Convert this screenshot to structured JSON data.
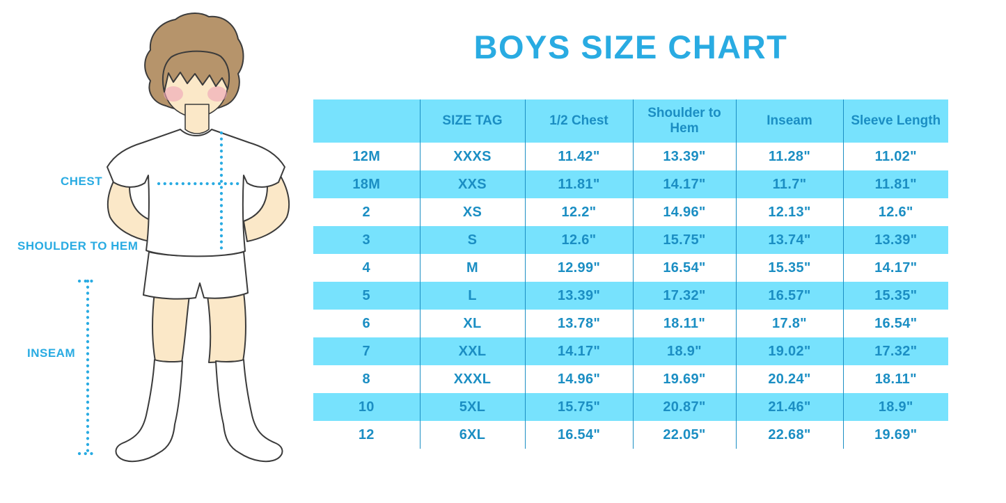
{
  "title": "BOYS SIZE CHART",
  "figure": {
    "labels": {
      "chest": "CHEST",
      "shoulder_to_hem": "SHOULDER TO HEM",
      "inseam": "INSEAM"
    }
  },
  "chart_data": {
    "type": "table",
    "title": "BOYS SIZE CHART",
    "columns": [
      "",
      "SIZE TAG",
      "1/2 Chest",
      "Shoulder to Hem",
      "Inseam",
      "Sleeve Length"
    ],
    "rows": [
      [
        "12M",
        "XXXS",
        "11.42\"",
        "13.39\"",
        "11.28\"",
        "11.02\""
      ],
      [
        "18M",
        "XXS",
        "11.81\"",
        "14.17\"",
        "11.7\"",
        "11.81\""
      ],
      [
        "2",
        "XS",
        "12.2\"",
        "14.96\"",
        "12.13\"",
        "12.6\""
      ],
      [
        "3",
        "S",
        "12.6\"",
        "15.75\"",
        "13.74\"",
        "13.39\""
      ],
      [
        "4",
        "M",
        "12.99\"",
        "16.54\"",
        "15.35\"",
        "14.17\""
      ],
      [
        "5",
        "L",
        "13.39\"",
        "17.32\"",
        "16.57\"",
        "15.35\""
      ],
      [
        "6",
        "XL",
        "13.78\"",
        "18.11\"",
        "17.8\"",
        "16.54\""
      ],
      [
        "7",
        "XXL",
        "14.17\"",
        "18.9\"",
        "19.02\"",
        "17.32\""
      ],
      [
        "8",
        "XXXL",
        "14.96\"",
        "19.69\"",
        "20.24\"",
        "18.11\""
      ],
      [
        "10",
        "5XL",
        "15.75\"",
        "20.87\"",
        "21.46\"",
        "18.9\""
      ],
      [
        "12",
        "6XL",
        "16.54\"",
        "22.05\"",
        "22.68\"",
        "19.69\""
      ]
    ],
    "row_stripe_pattern": "white/cyan alternating, first data row white",
    "grid": "vertical column separators only, no horizontal lines"
  },
  "colors": {
    "title_blue": "#29ABE2",
    "measure_blue": "#29ABE2",
    "band_cyan": "#77E2FD",
    "table_text": "#1B8EC3",
    "table_line": "#1B8EC3",
    "hair": "#B6946B",
    "skin": "#FBE8C8",
    "blush": "#EFA3B8",
    "outline": "#3B3B3B",
    "garment": "#FFFFFF"
  }
}
